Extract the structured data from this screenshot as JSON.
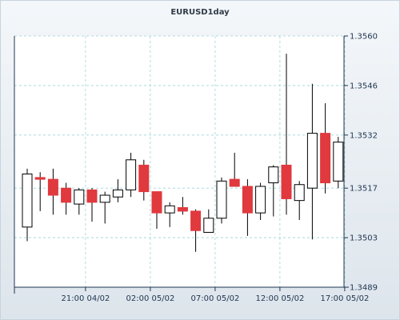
{
  "chart_data": {
    "type": "candlestick",
    "title": "EURUSD1day",
    "xlabel": "",
    "ylabel": "",
    "ylim": [
      1.3489,
      1.356
    ],
    "y_ticks": [
      "1.3560",
      "1.3546",
      "1.3532",
      "1.3517",
      "1.3503",
      "1.3489"
    ],
    "x_ticks": [
      {
        "index": 4.5,
        "label": "21:00 04/02"
      },
      {
        "index": 9.5,
        "label": "02:00 05/02"
      },
      {
        "index": 14.5,
        "label": "07:00 05/02"
      },
      {
        "index": 19.5,
        "label": "12:00 05/02"
      },
      {
        "index": 24.5,
        "label": "17:00 05/02"
      }
    ],
    "grid": true,
    "colors": {
      "up_body": "#ffffff",
      "down_body": "#e0393e",
      "outline": "#000000",
      "grid": "#9fd3d8"
    },
    "candles": [
      {
        "open": 1.3506,
        "high": 1.35225,
        "low": 1.3502,
        "close": 1.3521
      },
      {
        "open": 1.352,
        "high": 1.35215,
        "low": 1.35105,
        "close": 1.35195
      },
      {
        "open": 1.35195,
        "high": 1.35225,
        "low": 1.35095,
        "close": 1.3515
      },
      {
        "open": 1.3517,
        "high": 1.35185,
        "low": 1.35095,
        "close": 1.3513
      },
      {
        "open": 1.35125,
        "high": 1.3517,
        "low": 1.35095,
        "close": 1.35165
      },
      {
        "open": 1.35165,
        "high": 1.3517,
        "low": 1.35075,
        "close": 1.3513
      },
      {
        "open": 1.3513,
        "high": 1.3516,
        "low": 1.3507,
        "close": 1.3515
      },
      {
        "open": 1.35145,
        "high": 1.35195,
        "low": 1.3513,
        "close": 1.35165
      },
      {
        "open": 1.35165,
        "high": 1.3527,
        "low": 1.35145,
        "close": 1.3525
      },
      {
        "open": 1.35235,
        "high": 1.3525,
        "low": 1.35135,
        "close": 1.3516
      },
      {
        "open": 1.3516,
        "high": 1.3516,
        "low": 1.35055,
        "close": 1.351
      },
      {
        "open": 1.351,
        "high": 1.3513,
        "low": 1.3506,
        "close": 1.3512
      },
      {
        "open": 1.35115,
        "high": 1.35145,
        "low": 1.35095,
        "close": 1.35105
      },
      {
        "open": 1.35105,
        "high": 1.3511,
        "low": 1.3499,
        "close": 1.3505
      },
      {
        "open": 1.35045,
        "high": 1.3511,
        "low": 1.35045,
        "close": 1.35085
      },
      {
        "open": 1.35085,
        "high": 1.352,
        "low": 1.3507,
        "close": 1.3519
      },
      {
        "open": 1.35195,
        "high": 1.3527,
        "low": 1.35175,
        "close": 1.35175
      },
      {
        "open": 1.35175,
        "high": 1.35195,
        "low": 1.35035,
        "close": 1.351
      },
      {
        "open": 1.351,
        "high": 1.35185,
        "low": 1.3508,
        "close": 1.35175
      },
      {
        "open": 1.35185,
        "high": 1.35235,
        "low": 1.3509,
        "close": 1.3523
      },
      {
        "open": 1.35235,
        "high": 1.3555,
        "low": 1.35095,
        "close": 1.3514
      },
      {
        "open": 1.35135,
        "high": 1.3519,
        "low": 1.3508,
        "close": 1.3518
      },
      {
        "open": 1.3517,
        "high": 1.35465,
        "low": 1.35025,
        "close": 1.35325
      },
      {
        "open": 1.35325,
        "high": 1.3541,
        "low": 1.35155,
        "close": 1.35185
      },
      {
        "open": 1.3519,
        "high": 1.35315,
        "low": 1.3517,
        "close": 1.353
      }
    ]
  }
}
